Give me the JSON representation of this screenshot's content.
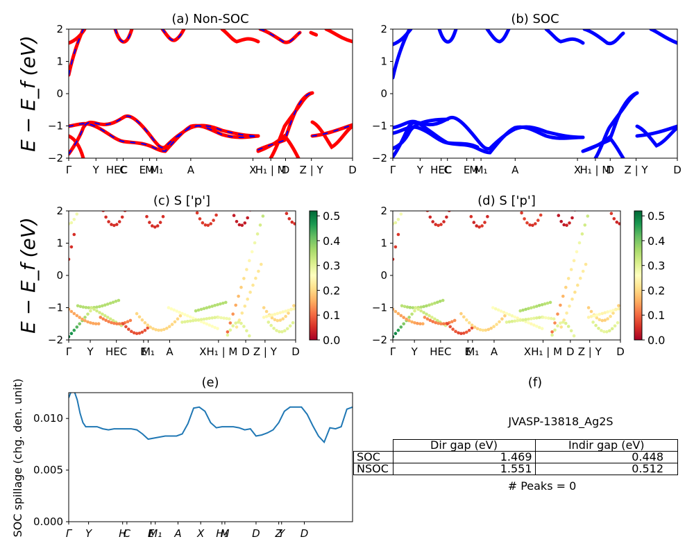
{
  "chart_data": [
    {
      "id": "a",
      "type": "line",
      "title": "(a) Non-SOC",
      "ylabel": "E − E_f (eV)",
      "ylim": [
        -2,
        2
      ],
      "yticks": [
        "−2",
        "−1",
        "0",
        "1",
        "2"
      ],
      "xlim": [
        0,
        100
      ],
      "kpath": [
        {
          "x": 0,
          "label": "Γ"
        },
        {
          "x": 9.6,
          "label": "Y"
        },
        {
          "x": 17,
          "label": "HEC"
        },
        {
          "x": 19.2,
          "label": "C"
        },
        {
          "x": 26,
          "label": "E"
        },
        {
          "x": 28.5,
          "label": "M"
        },
        {
          "x": 31,
          "label": "M₁"
        },
        {
          "x": 43,
          "label": "A"
        },
        {
          "x": 64.9,
          "label": "X"
        },
        {
          "x": 71.2,
          "label": "H₁ | M"
        },
        {
          "x": 76.4,
          "label": "D"
        },
        {
          "x": 85.5,
          "label": "Z | Y"
        },
        {
          "x": 100,
          "label": "D"
        }
      ],
      "series": [
        {
          "name": "Non-SOC (red/blue dashed)",
          "color": "#ff0000"
        }
      ]
    },
    {
      "id": "b",
      "type": "line",
      "title": "(b) SOC",
      "ylim": [
        -2,
        2
      ],
      "yticks": [
        "−2",
        "−1",
        "0",
        "1",
        "2"
      ],
      "series": [
        {
          "name": "SOC",
          "color": "#0000ff"
        }
      ]
    },
    {
      "id": "c",
      "type": "scatter",
      "title": "(c)  S ['p']",
      "ylabel": "E − E_f (eV)",
      "ylim": [
        -2,
        2
      ],
      "colorbar": {
        "min": 0.0,
        "max": 0.52,
        "ticks": [
          "0.0",
          "0.1",
          "0.2",
          "0.3",
          "0.4",
          "0.5"
        ],
        "cmap": "RdYlGn"
      },
      "xticks": [
        "Γ",
        "Y",
        "HEC",
        "E",
        "M₁",
        "A",
        "XH₁ | M",
        "D",
        "Z | Y",
        "D"
      ]
    },
    {
      "id": "d",
      "type": "scatter",
      "title": "(d) S ['p']",
      "ylim": [
        -2,
        2
      ],
      "colorbar": {
        "min": 0.0,
        "max": 0.52,
        "ticks": [
          "0.0",
          "0.1",
          "0.2",
          "0.3",
          "0.4",
          "0.5"
        ],
        "cmap": "RdYlGn"
      },
      "xticks": [
        "Γ",
        "Y",
        "HEC",
        "E",
        "M₁",
        "A",
        "XH₁ | M",
        "D",
        "Z | Y",
        "D"
      ]
    },
    {
      "id": "e",
      "type": "line",
      "title": "(e)",
      "ylabel": "SOC spillage (chg. den. unit)",
      "ylim": [
        0.0,
        0.0125
      ],
      "yticks": [
        "0.000",
        "0.005",
        "0.010"
      ],
      "xticks": [
        "Γ",
        "Y",
        "H",
        "C",
        "E",
        "M₁",
        "A",
        "X",
        "H₁",
        "M",
        "D",
        "Z",
        "Y",
        "D"
      ],
      "x": [
        0,
        1,
        2,
        3,
        4,
        5,
        6,
        8,
        10,
        12,
        14,
        16,
        18,
        20,
        22,
        24,
        26,
        28,
        30,
        32,
        34,
        36,
        38,
        40,
        42,
        44,
        46,
        48,
        50,
        52,
        54,
        56,
        58,
        60,
        62,
        64,
        66,
        68,
        70,
        72,
        74,
        76,
        78,
        80,
        82,
        84,
        86,
        88,
        90,
        92,
        94,
        96,
        98,
        100
      ],
      "values": [
        0.012,
        0.0127,
        0.0126,
        0.0118,
        0.0105,
        0.0096,
        0.0092,
        0.0092,
        0.0092,
        0.009,
        0.0089,
        0.009,
        0.009,
        0.009,
        0.009,
        0.0089,
        0.0085,
        0.008,
        0.0081,
        0.0082,
        0.0083,
        0.0083,
        0.0083,
        0.0085,
        0.0095,
        0.011,
        0.0111,
        0.0107,
        0.0096,
        0.0091,
        0.0092,
        0.0092,
        0.0092,
        0.0091,
        0.0089,
        0.009,
        0.0083,
        0.0084,
        0.0086,
        0.0089,
        0.0096,
        0.0107,
        0.0111,
        0.0111,
        0.0111,
        0.0104,
        0.0093,
        0.0083,
        0.0077,
        0.0091,
        0.009,
        0.0092,
        0.0109,
        0.0111
      ],
      "series": [
        {
          "name": "spillage",
          "color": "#1f77b4"
        }
      ]
    }
  ],
  "panel_f": {
    "title": "(f)",
    "material": "JVASP-13818_Ag2S",
    "headers": [
      "Dir gap (eV)",
      "Indir gap (eV)"
    ],
    "rows": [
      {
        "label": "SOC",
        "dir": "1.469",
        "indir": "0.448"
      },
      {
        "label": "NSOC",
        "dir": "1.551",
        "indir": "0.512"
      }
    ],
    "peaks": "# Peaks = 0"
  }
}
